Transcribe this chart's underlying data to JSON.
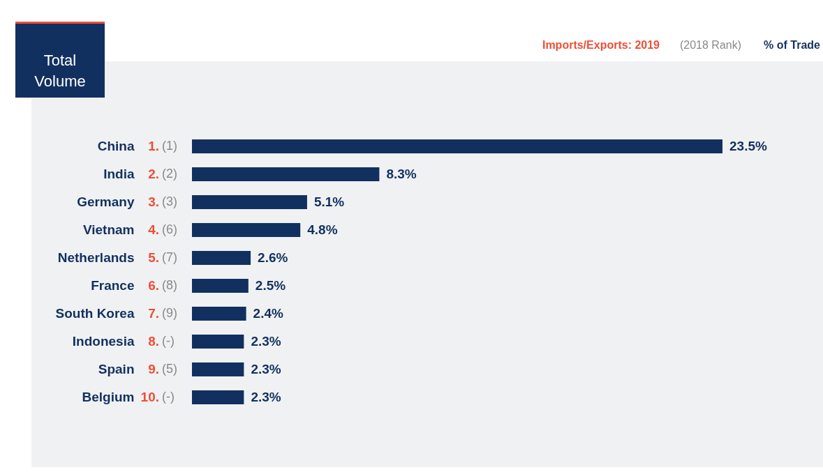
{
  "chart_data": {
    "type": "bar",
    "orientation": "horizontal",
    "title": "Total Volume",
    "categories": [
      "China",
      "India",
      "Germany",
      "Vietnam",
      "Netherlands",
      "France",
      "South Korea",
      "Indonesia",
      "Spain",
      "Belgium"
    ],
    "values": [
      23.5,
      8.3,
      5.1,
      4.8,
      2.6,
      2.5,
      2.4,
      2.3,
      2.3,
      2.3
    ],
    "value_labels": [
      "23.5%",
      "8.3%",
      "5.1%",
      "4.8%",
      "2.6%",
      "2.5%",
      "2.4%",
      "2.3%",
      "2.3%",
      "2.3%"
    ],
    "color": "#12305f",
    "annotations": [
      "Imports/Exports: 2019",
      "(2018 Rank)",
      "% of Trade",
      "1.",
      "(1)",
      "2.",
      "(2)",
      "3.",
      "(3)",
      "4.",
      "(6)",
      "5.",
      "(7)",
      "6.",
      "(8)",
      "7.",
      "(9)",
      "8.",
      "(-)",
      "9.",
      "(5)",
      "10.",
      "(-)"
    ]
  }
}
